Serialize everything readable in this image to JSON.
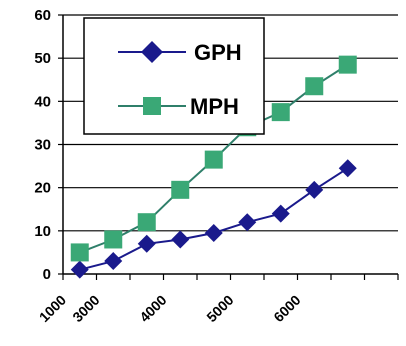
{
  "chart_data": {
    "type": "line",
    "title": "",
    "xlabel": "",
    "ylabel": "",
    "ylim": [
      0,
      60
    ],
    "yticks": [
      0,
      10,
      20,
      30,
      40,
      50,
      60
    ],
    "xtick_labels": [
      "1000",
      "3000",
      "4000",
      "5000",
      "6000"
    ],
    "grid": "horizontal",
    "legend": "top-left",
    "series": [
      {
        "name": "GPH",
        "color": "#1a1a8c",
        "marker": "diamond",
        "values": [
          1,
          3,
          7,
          8,
          9.5,
          12,
          14,
          19.5,
          24.5
        ]
      },
      {
        "name": "MPH",
        "color": "#3aa876",
        "line_color": "#2f7f6a",
        "marker": "square",
        "values": [
          5,
          8,
          12,
          19.5,
          26.5,
          34,
          37.5,
          43.5,
          48.5
        ]
      }
    ]
  }
}
